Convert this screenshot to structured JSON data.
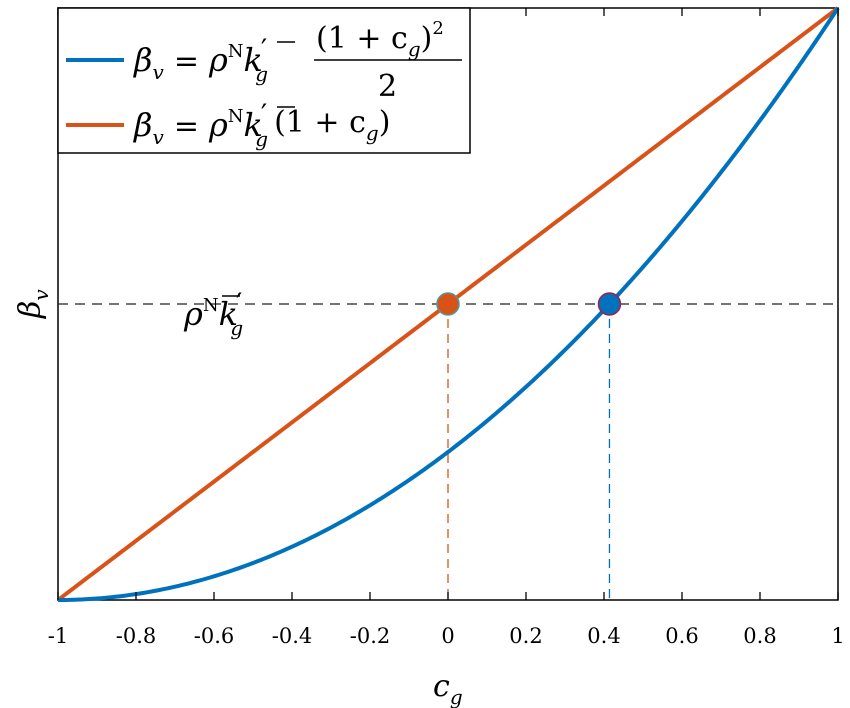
{
  "chart_data": {
    "type": "line",
    "title": "",
    "xlabel": "c",
    "xlabel_sub": "g",
    "ylabel": "β",
    "ylabel_sub": "v",
    "xlim": [
      -1,
      1
    ],
    "ylim": [
      0,
      2
    ],
    "grid": false,
    "legend_position": "top-left",
    "x_ticks": [
      "-1",
      "-0.8",
      "-0.6",
      "-0.4",
      "-0.2",
      "0",
      "0.2",
      "0.4",
      "0.6",
      "0.8",
      "1"
    ],
    "reference_line": {
      "y": 1,
      "label": "ρᴺ k̄′g"
    },
    "series": [
      {
        "name": "β_v = ρ^N k̄′_g (1 + c_g)^2 / 2",
        "color": "#0072BD",
        "function": "(1+c)^2/2",
        "marker": {
          "x": 0.414,
          "y": 1
        }
      },
      {
        "name": "β_v = ρ^N k̄′_g (1 + c_g)",
        "color": "#D95319",
        "function": "(1+c)",
        "marker": {
          "x": 0,
          "y": 1
        }
      }
    ],
    "legend": {
      "entry1": {
        "beta": "β",
        "beta_sub": "v",
        "eq": "=",
        "rho": "ρ",
        "N": "N",
        "k": "k",
        "prime": "′",
        "g": "g",
        "num": "(1 + c",
        "num_sub": "g",
        "num_close": ")",
        "num_sup": "2",
        "den": "2"
      },
      "entry2": {
        "beta": "β",
        "beta_sub": "v",
        "eq": "=",
        "rho": "ρ",
        "N": "N",
        "k": "k",
        "prime": "′",
        "g": "g",
        "tail": "(1 + c",
        "tail_sub": "g",
        "tail_close": ")"
      }
    },
    "ref_label": {
      "rho": "ρ",
      "N": "N",
      "k": "k",
      "prime": "′",
      "g": "g"
    }
  }
}
